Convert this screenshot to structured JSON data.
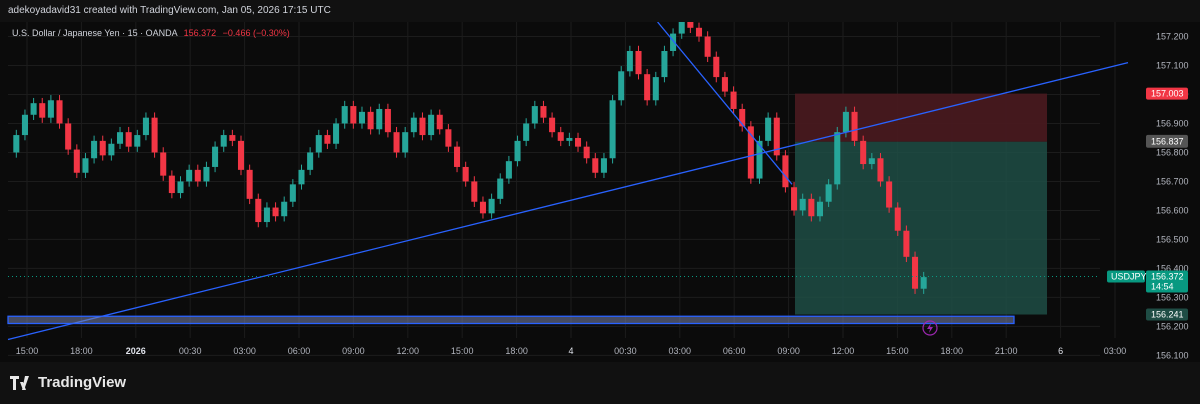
{
  "header": {
    "attribution": "adekoyadavid31 created with TradingView.com, Jan 05, 2026 17:15 UTC"
  },
  "legend": {
    "symbol_desc": "U.S. Dollar / Japanese Yen · 15 · OANDA",
    "price": "156.372",
    "change": "−0.466 (−0.30%)"
  },
  "footer": {
    "brand": "TradingView"
  },
  "colors": {
    "up": "#26a69a",
    "down": "#f23645",
    "trendline": "#2962ff",
    "target_zone": "#1f4d45",
    "stop_zone": "#4a1a1f"
  },
  "chart_data": {
    "type": "candlestick",
    "symbol": "USDJPY",
    "timeframe": "15",
    "ylim": [
      156.16,
      157.25
    ],
    "y_ticks": [
      {
        "value": 157.2,
        "label": "157.200"
      },
      {
        "value": 157.1,
        "label": "157.100"
      },
      {
        "value": 157.0,
        "label": "157.000"
      },
      {
        "value": 156.9,
        "label": "156.900"
      },
      {
        "value": 156.8,
        "label": "156.800"
      },
      {
        "value": 156.7,
        "label": "156.700"
      },
      {
        "value": 156.6,
        "label": "156.600"
      },
      {
        "value": 156.5,
        "label": "156.500"
      },
      {
        "value": 156.4,
        "label": "156.400"
      },
      {
        "value": 156.3,
        "label": "156.300"
      },
      {
        "value": 156.2,
        "label": "156.200"
      },
      {
        "value": 156.1,
        "label": "156.100"
      }
    ],
    "x_ticks": [
      "15:00",
      "18:00",
      "2026",
      "00:30",
      "03:00",
      "06:00",
      "09:00",
      "12:00",
      "15:00",
      "18:00",
      "4",
      "00:30",
      "03:00",
      "06:00",
      "09:00",
      "12:00",
      "15:00",
      "18:00",
      "21:00",
      "6",
      "03:00"
    ],
    "price_tags": [
      {
        "value": 157.003,
        "label": "157.003",
        "color": "#f23645"
      },
      {
        "value": 156.84,
        "label": "156.840",
        "color": "#555"
      },
      {
        "value": 156.837,
        "label": "156.837",
        "color": "#555"
      },
      {
        "value": 156.372,
        "label": "156.372",
        "sub": "14:54",
        "color": "#089981",
        "symbol": "USDJPY"
      },
      {
        "value": 156.241,
        "label": "156.241",
        "color": "#1f4d45"
      }
    ],
    "position": {
      "entry": 156.837,
      "stop": 157.003,
      "target": 156.241
    },
    "candles": [
      [
        156.8,
        156.86
      ],
      [
        156.86,
        156.93
      ],
      [
        156.93,
        156.97
      ],
      [
        156.97,
        156.92
      ],
      [
        156.92,
        156.98
      ],
      [
        156.98,
        156.9
      ],
      [
        156.9,
        156.81
      ],
      [
        156.81,
        156.73
      ],
      [
        156.73,
        156.78
      ],
      [
        156.78,
        156.84
      ],
      [
        156.84,
        156.79
      ],
      [
        156.79,
        156.83
      ],
      [
        156.83,
        156.87
      ],
      [
        156.87,
        156.82
      ],
      [
        156.82,
        156.86
      ],
      [
        156.86,
        156.92
      ],
      [
        156.92,
        156.8
      ],
      [
        156.8,
        156.72
      ],
      [
        156.72,
        156.66
      ],
      [
        156.66,
        156.7
      ],
      [
        156.7,
        156.74
      ],
      [
        156.74,
        156.7
      ],
      [
        156.7,
        156.75
      ],
      [
        156.75,
        156.82
      ],
      [
        156.82,
        156.86
      ],
      [
        156.86,
        156.84
      ],
      [
        156.84,
        156.74
      ],
      [
        156.74,
        156.64
      ],
      [
        156.64,
        156.56
      ],
      [
        156.56,
        156.61
      ],
      [
        156.61,
        156.58
      ],
      [
        156.58,
        156.63
      ],
      [
        156.63,
        156.69
      ],
      [
        156.69,
        156.74
      ],
      [
        156.74,
        156.8
      ],
      [
        156.8,
        156.86
      ],
      [
        156.86,
        156.83
      ],
      [
        156.83,
        156.9
      ],
      [
        156.9,
        156.96
      ],
      [
        156.96,
        156.9
      ],
      [
        156.9,
        156.94
      ],
      [
        156.94,
        156.88
      ],
      [
        156.88,
        156.95
      ],
      [
        156.95,
        156.87
      ],
      [
        156.87,
        156.8
      ],
      [
        156.8,
        156.87
      ],
      [
        156.87,
        156.92
      ],
      [
        156.92,
        156.86
      ],
      [
        156.86,
        156.93
      ],
      [
        156.93,
        156.88
      ],
      [
        156.88,
        156.82
      ],
      [
        156.82,
        156.75
      ],
      [
        156.75,
        156.7
      ],
      [
        156.7,
        156.63
      ],
      [
        156.63,
        156.59
      ],
      [
        156.59,
        156.64
      ],
      [
        156.64,
        156.71
      ],
      [
        156.71,
        156.77
      ],
      [
        156.77,
        156.84
      ],
      [
        156.84,
        156.9
      ],
      [
        156.9,
        156.96
      ],
      [
        156.96,
        156.92
      ],
      [
        156.92,
        156.87
      ],
      [
        156.87,
        156.84
      ],
      [
        156.84,
        156.85
      ],
      [
        156.85,
        156.82
      ],
      [
        156.82,
        156.78
      ],
      [
        156.78,
        156.73
      ],
      [
        156.73,
        156.78
      ],
      [
        156.78,
        156.98
      ],
      [
        156.98,
        157.08
      ],
      [
        157.08,
        157.15
      ],
      [
        157.15,
        157.07
      ],
      [
        157.07,
        156.98
      ],
      [
        156.98,
        157.06
      ],
      [
        157.06,
        157.15
      ],
      [
        157.15,
        157.21
      ],
      [
        157.21,
        157.25
      ],
      [
        157.25,
        157.23
      ],
      [
        157.23,
        157.2
      ],
      [
        157.2,
        157.13
      ],
      [
        157.13,
        157.06
      ],
      [
        157.06,
        157.01
      ],
      [
        157.01,
        156.95
      ],
      [
        156.95,
        156.89
      ],
      [
        156.89,
        156.71
      ],
      [
        156.71,
        156.84
      ],
      [
        156.84,
        156.92
      ],
      [
        156.92,
        156.79
      ],
      [
        156.79,
        156.68
      ],
      [
        156.68,
        156.6
      ],
      [
        156.6,
        156.64
      ],
      [
        156.64,
        156.58
      ],
      [
        156.58,
        156.63
      ],
      [
        156.63,
        156.69
      ],
      [
        156.69,
        156.87
      ],
      [
        156.87,
        156.94
      ],
      [
        156.94,
        156.84
      ],
      [
        156.84,
        156.76
      ],
      [
        156.76,
        156.78
      ],
      [
        156.78,
        156.7
      ],
      [
        156.7,
        156.61
      ],
      [
        156.61,
        156.53
      ],
      [
        156.53,
        156.44
      ],
      [
        156.44,
        156.33
      ],
      [
        156.33,
        156.37
      ]
    ],
    "drawings": [
      {
        "type": "trendline",
        "from": [
          0,
          156.155
        ],
        "to": [
          1,
          157.11
        ],
        "color": "#2962ff"
      },
      {
        "type": "trendline",
        "from": [
          0.58,
          157.25
        ],
        "to": [
          0.7,
          156.69
        ],
        "color": "#2962ff"
      },
      {
        "type": "rectangle",
        "top": 156.235,
        "bottom": 156.21,
        "color": "#2962ff"
      }
    ]
  }
}
